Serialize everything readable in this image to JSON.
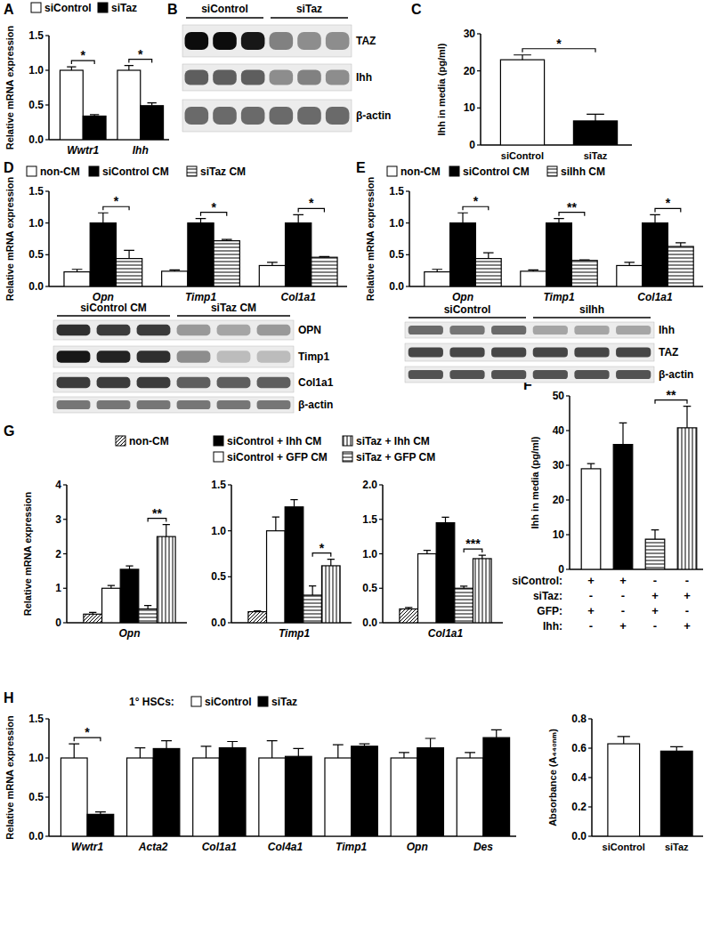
{
  "chart_data": [
    {
      "type": "bar",
      "panel_label": "A",
      "ylabel": "Relative mRNA expression",
      "categories": [
        "Wwtr1",
        "Ihh"
      ],
      "series": [
        {
          "name": "siControl",
          "color": "#ffffff",
          "values": [
            1.0,
            1.0
          ],
          "errors": [
            0.05,
            0.07
          ]
        },
        {
          "name": "siTaz",
          "color": "#000000",
          "values": [
            0.34,
            0.49
          ],
          "errors": [
            0.02,
            0.04
          ]
        }
      ],
      "ylim": [
        0,
        1.5
      ],
      "yticks": [
        {
          "value": 0,
          "label": "0.0"
        },
        {
          "value": 0.5,
          "label": "0.5"
        },
        {
          "value": 1,
          "label": "1.0"
        },
        {
          "value": 1.5,
          "label": "1.5"
        }
      ],
      "significance": [
        {
          "category": "Wwtr1",
          "series": [
            0,
            1
          ],
          "label": "*"
        },
        {
          "category": "Ihh",
          "series": [
            0,
            1
          ],
          "label": "*"
        }
      ]
    },
    {
      "type": "bar",
      "panel_label": "C",
      "ylabel": "Ihh in media (pg/ml)",
      "categories": [
        "siControl",
        "siTaz"
      ],
      "values": [
        23,
        6.5
      ],
      "errors": [
        1.3,
        1.8
      ],
      "colors": [
        "#ffffff",
        "#000000"
      ],
      "ylim": [
        0,
        30
      ],
      "yticks": [
        0,
        10,
        20,
        30
      ],
      "significance": [
        {
          "categories": [
            0,
            1
          ],
          "label": "*"
        }
      ]
    },
    {
      "type": "bar",
      "panel_label": "D",
      "ylabel": "Relative mRNA expression",
      "categories": [
        "Opn",
        "Timp1",
        "Col1a1"
      ],
      "series": [
        {
          "name": "non-CM",
          "color": "#ffffff",
          "values": [
            0.23,
            0.24,
            0.33
          ],
          "errors": [
            0.04,
            0.02,
            0.05
          ]
        },
        {
          "name": "siControl CM",
          "color": "#000000",
          "values": [
            1.0,
            1.0,
            1.0
          ],
          "errors": [
            0.16,
            0.07,
            0.13
          ]
        },
        {
          "name": "siTaz CM",
          "color": "#ffffff",
          "values": [
            0.44,
            0.72,
            0.46
          ],
          "errors": [
            0.13,
            0.02,
            0.01
          ]
        }
      ],
      "ylim": [
        0,
        1.5
      ],
      "yticks": [
        {
          "value": 0,
          "label": "0.0"
        },
        {
          "value": 0.5,
          "label": "0.5"
        },
        {
          "value": 1,
          "label": "1.0"
        },
        {
          "value": 1.5,
          "label": "1.5"
        }
      ],
      "significance": [
        {
          "category": "Opn",
          "series": [
            1,
            2
          ],
          "label": "*"
        },
        {
          "category": "Timp1",
          "series": [
            1,
            2
          ],
          "label": "*"
        },
        {
          "category": "Col1a1",
          "series": [
            1,
            2
          ],
          "label": "*"
        }
      ]
    },
    {
      "type": "bar",
      "panel_label": "E",
      "ylabel": "Relative mRNA expression",
      "categories": [
        "Opn",
        "Timp1",
        "Col1a1"
      ],
      "series": [
        {
          "name": "non-CM",
          "color": "#ffffff",
          "values": [
            0.23,
            0.24,
            0.33
          ],
          "errors": [
            0.04,
            0.02,
            0.05
          ]
        },
        {
          "name": "siControl CM",
          "color": "#000000",
          "values": [
            1.0,
            1.0,
            1.0
          ],
          "errors": [
            0.16,
            0.07,
            0.13
          ]
        },
        {
          "name": "siIhh CM",
          "color": "#ffffff",
          "values": [
            0.44,
            0.41,
            0.63
          ],
          "errors": [
            0.09,
            0.01,
            0.06
          ]
        }
      ],
      "ylim": [
        0,
        1.5
      ],
      "yticks": [
        {
          "value": 0,
          "label": "0.0"
        },
        {
          "value": 0.5,
          "label": "0.5"
        },
        {
          "value": 1,
          "label": "1.0"
        },
        {
          "value": 1.5,
          "label": "1.5"
        }
      ],
      "significance": [
        {
          "category": "Opn",
          "series": [
            1,
            2
          ],
          "label": "*"
        },
        {
          "category": "Timp1",
          "series": [
            1,
            2
          ],
          "label": "**"
        },
        {
          "category": "Col1a1",
          "series": [
            1,
            2
          ],
          "label": "*"
        }
      ]
    },
    {
      "type": "bar",
      "panel_label": "F",
      "ylabel": "Ihh in media (pg/ml)",
      "categories": [
        null,
        null,
        null,
        null
      ],
      "values": [
        29,
        36,
        8.7,
        40.8
      ],
      "errors": [
        1.5,
        6.2,
        2.7,
        6.2
      ],
      "colors": [
        "#ffffff",
        "#000000",
        "#ffffff",
        "#ffffff"
      ],
      "ylim": [
        0,
        50
      ],
      "yticks": [
        0,
        10,
        20,
        30,
        40,
        50
      ],
      "significance": [
        {
          "categories": [
            2,
            3
          ],
          "label": "**"
        }
      ],
      "condition_table": {
        "rows": [
          {
            "label": "siControl:",
            "marks": [
              "+",
              "+",
              "-",
              "-"
            ]
          },
          {
            "label": "siTaz:",
            "marks": [
              "-",
              "-",
              "+",
              "+"
            ]
          },
          {
            "label": "GFP:",
            "marks": [
              "+",
              "-",
              "+",
              "-"
            ]
          },
          {
            "label": "Ihh:",
            "marks": [
              "-",
              "+",
              "-",
              "+"
            ]
          }
        ]
      }
    },
    {
      "type": "bar",
      "panel_label": "G",
      "ylabel": "Relative mRNA expression",
      "categories": [
        "Opn"
      ],
      "series": [
        {
          "name": "non-CM",
          "color": "#ffffff",
          "values": [
            0.25
          ],
          "errors": [
            0.05
          ]
        },
        {
          "name": "siControl + GFP CM",
          "color": "#ffffff",
          "values": [
            1.0
          ],
          "errors": [
            0.08
          ]
        },
        {
          "name": "siControl + Ihh CM",
          "color": "#000000",
          "values": [
            1.55
          ],
          "errors": [
            0.1
          ]
        },
        {
          "name": "siTaz + GFP CM",
          "color": "#ffffff",
          "values": [
            0.4
          ],
          "errors": [
            0.1
          ]
        },
        {
          "name": "siTaz + Ihh CM",
          "color": "#ffffff",
          "values": [
            2.5
          ],
          "errors": [
            0.35
          ]
        }
      ],
      "ylim": [
        0,
        4
      ],
      "yticks": [
        0,
        1,
        2,
        3,
        4
      ],
      "significance": [
        {
          "category": "Opn",
          "series": [
            3,
            4
          ],
          "label": "**"
        }
      ]
    },
    {
      "type": "bar",
      "categories": [
        "Timp1"
      ],
      "series": [
        {
          "color": "#ffffff",
          "values": [
            0.12
          ],
          "errors": [
            0.01
          ]
        },
        {
          "color": "#ffffff",
          "values": [
            1.0
          ],
          "errors": [
            0.15
          ]
        },
        {
          "color": "#000000",
          "values": [
            1.26
          ],
          "errors": [
            0.08
          ]
        },
        {
          "color": "#ffffff",
          "values": [
            0.3
          ],
          "errors": [
            0.1
          ]
        },
        {
          "color": "#ffffff",
          "values": [
            0.62
          ],
          "errors": [
            0.07
          ]
        }
      ],
      "ylim": [
        0,
        1.5
      ],
      "yticks": [
        {
          "value": 0,
          "label": "0.0"
        },
        {
          "value": 0.5,
          "label": "0.5"
        },
        {
          "value": 1,
          "label": "1.0"
        },
        {
          "value": 1.5,
          "label": "1.5"
        }
      ],
      "significance": [
        {
          "category": "Timp1",
          "series": [
            3,
            4
          ],
          "label": "*"
        }
      ]
    },
    {
      "type": "bar",
      "categories": [
        "Col1a1"
      ],
      "series": [
        {
          "color": "#ffffff",
          "values": [
            0.2
          ],
          "errors": [
            0.02
          ]
        },
        {
          "color": "#ffffff",
          "values": [
            1.0
          ],
          "errors": [
            0.05
          ]
        },
        {
          "color": "#000000",
          "values": [
            1.45
          ],
          "errors": [
            0.08
          ]
        },
        {
          "color": "#ffffff",
          "values": [
            0.5
          ],
          "errors": [
            0.03
          ]
        },
        {
          "color": "#ffffff",
          "values": [
            0.93
          ],
          "errors": [
            0.05
          ]
        }
      ],
      "ylim": [
        0,
        2
      ],
      "yticks": [
        {
          "value": 0,
          "label": "0.0"
        },
        {
          "value": 0.5,
          "label": "0.5"
        },
        {
          "value": 1,
          "label": "1.0"
        },
        {
          "value": 1.5,
          "label": "1.5"
        },
        {
          "value": 2,
          "label": "2.0"
        }
      ],
      "significance": [
        {
          "category": "Col1a1",
          "series": [
            3,
            4
          ],
          "label": "***"
        }
      ]
    },
    {
      "type": "bar",
      "panel_label": "H",
      "ylabel": "Relative mRNA expression",
      "legend_title": "1° HSCs:",
      "categories": [
        "Wwtr1",
        "Acta2",
        "Col1a1",
        "Col4a1",
        "Timp1",
        "Opn",
        "Des"
      ],
      "series": [
        {
          "name": "siControl",
          "color": "#ffffff",
          "values": [
            1.0,
            1.0,
            1.0,
            1.0,
            1.0,
            1.0,
            1.0
          ],
          "errors": [
            0.18,
            0.13,
            0.15,
            0.22,
            0.17,
            0.07,
            0.07
          ]
        },
        {
          "name": "siTaz",
          "color": "#000000",
          "values": [
            0.28,
            1.12,
            1.13,
            1.02,
            1.15,
            1.13,
            1.26
          ],
          "errors": [
            0.03,
            0.1,
            0.08,
            0.1,
            0.03,
            0.12,
            0.1
          ]
        }
      ],
      "ylim": [
        0,
        1.5
      ],
      "yticks": [
        {
          "value": 0,
          "label": "0.0"
        },
        {
          "value": 0.5,
          "label": "0.5"
        },
        {
          "value": 1,
          "label": "1.0"
        },
        {
          "value": 1.5,
          "label": "1.5"
        }
      ],
      "significance": [
        {
          "category": "Wwtr1",
          "series": [
            0,
            1
          ],
          "label": "*"
        }
      ]
    },
    {
      "type": "bar",
      "ylabel": "Absorbance (A₄₄₀ₙₘ)",
      "categories": [
        "siControl",
        "siTaz"
      ],
      "values": [
        0.63,
        0.58
      ],
      "errors": [
        0.05,
        0.03
      ],
      "colors": [
        "#ffffff",
        "#000000"
      ],
      "ylim": [
        0,
        0.8
      ],
      "yticks": [
        {
          "value": 0,
          "label": "0.0"
        },
        {
          "value": 0.2,
          "label": "0.2"
        },
        {
          "value": 0.4,
          "label": "0.4"
        },
        {
          "value": 0.6,
          "label": "0.6"
        },
        {
          "value": 0.8,
          "label": "0.8"
        }
      ]
    }
  ],
  "blots": [
    {
      "panel_label": "B",
      "groups": [
        "siControl",
        "siTaz"
      ],
      "rows": [
        {
          "label": "TAZ",
          "intensity": [
            0.95,
            0.95,
            0.9,
            0.45,
            0.4,
            0.4
          ]
        },
        {
          "label": "Ihh",
          "intensity": [
            0.6,
            0.6,
            0.6,
            0.4,
            0.45,
            0.4
          ]
        },
        {
          "label": "β-actin",
          "intensity": [
            0.55,
            0.55,
            0.55,
            0.55,
            0.55,
            0.55
          ]
        }
      ]
    },
    {
      "groups": [
        "siControl CM",
        "siTaz CM"
      ],
      "rows": [
        {
          "label": "OPN",
          "intensity": [
            0.8,
            0.75,
            0.75,
            0.35,
            0.3,
            0.35
          ]
        },
        {
          "label": "Timp1",
          "intensity": [
            0.9,
            0.85,
            0.8,
            0.4,
            0.2,
            0.2
          ]
        },
        {
          "label": "Col1a1",
          "intensity": [
            0.75,
            0.75,
            0.75,
            0.6,
            0.6,
            0.6
          ]
        },
        {
          "label": "β-actin",
          "intensity": [
            0.5,
            0.5,
            0.5,
            0.5,
            0.5,
            0.5
          ]
        }
      ]
    },
    {
      "groups": [
        "siControl",
        "siIhh"
      ],
      "rows": [
        {
          "label": "Ihh",
          "intensity": [
            0.55,
            0.5,
            0.55,
            0.3,
            0.3,
            0.3
          ]
        },
        {
          "label": "TAZ",
          "intensity": [
            0.7,
            0.7,
            0.7,
            0.7,
            0.7,
            0.7
          ]
        },
        {
          "label": "β-actin",
          "intensity": [
            0.65,
            0.65,
            0.65,
            0.65,
            0.65,
            0.65
          ]
        }
      ]
    }
  ]
}
